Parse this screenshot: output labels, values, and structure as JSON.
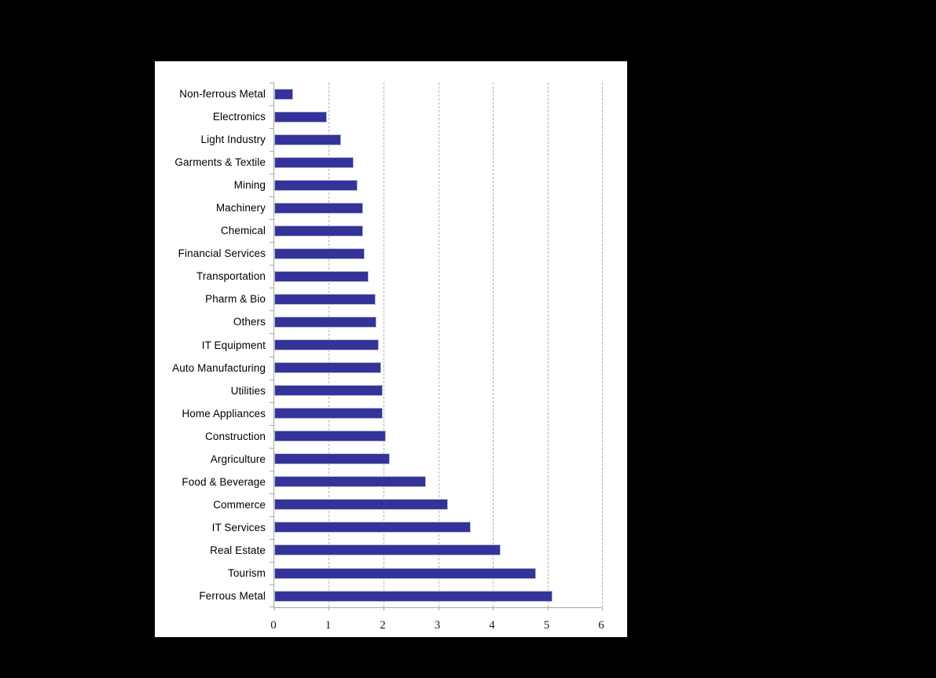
{
  "canvas": {
    "background_color": "#000000",
    "panel_background_color": "#ffffff"
  },
  "chart_data": {
    "type": "bar",
    "orientation": "horizontal",
    "categories": [
      "Non-ferrous Metal",
      "Electronics",
      "Light Industry",
      "Garments & Textile",
      "Mining",
      "Machinery",
      "Chemical",
      "Financial Services",
      "Transportation",
      "Pharm & Bio",
      "Others",
      "IT Equipment",
      "Auto Manufacturing",
      "Utilities",
      "Home Appliances",
      "Construction",
      "Argriculture",
      "Food & Beverage",
      "Commerce",
      "IT Services",
      "Real Estate",
      "Tourism",
      "Ferrous Metal"
    ],
    "values": [
      0.35,
      0.97,
      1.22,
      1.45,
      1.52,
      1.62,
      1.63,
      1.66,
      1.73,
      1.85,
      1.87,
      1.92,
      1.96,
      1.98,
      1.98,
      2.04,
      2.11,
      2.78,
      3.18,
      3.59,
      4.15,
      4.79,
      5.1
    ],
    "xlabel": "",
    "ylabel": "",
    "xlim": [
      0,
      6
    ],
    "x_ticks": [
      0,
      1,
      2,
      3,
      4,
      5,
      6
    ],
    "x_tick_labels": [
      "0",
      "1",
      "2",
      "3",
      "4",
      "5",
      "6"
    ],
    "grid": "vertical-dashed-major-only",
    "legend": "none",
    "bar_color": "#333399",
    "bar_border_color": "#bdbdd6",
    "gridline_color": "#b4b4b4",
    "axis_color": "#a6a6a6",
    "label_color": "#000000"
  }
}
